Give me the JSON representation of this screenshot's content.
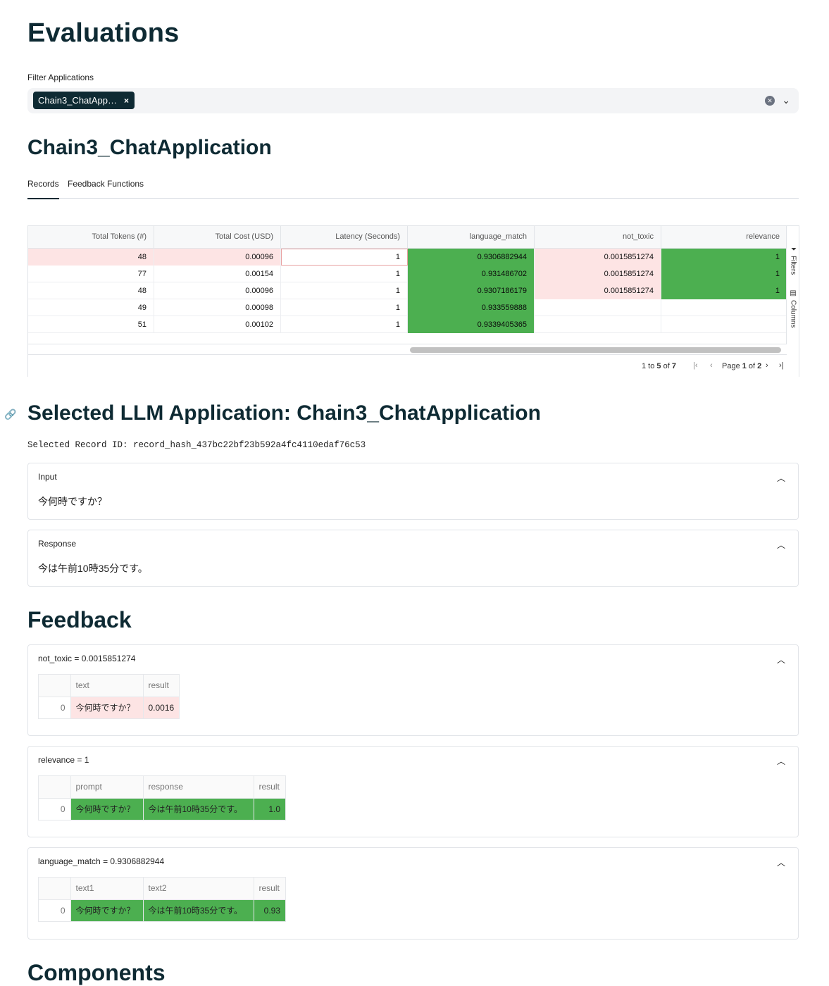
{
  "page_title": "Evaluations",
  "filter": {
    "label": "Filter Applications",
    "selected_chip": "Chain3_ChatApp…",
    "chip_remove": "×"
  },
  "app_title": "Chain3_ChatApplication",
  "tabs": [
    {
      "label": "Records",
      "active": true
    },
    {
      "label": "Feedback Functions",
      "active": false
    }
  ],
  "records_table": {
    "headers": [
      "Total Tokens (#)",
      "Total Cost (USD)",
      "Latency (Seconds)",
      "language_match",
      "not_toxic",
      "relevance"
    ],
    "rows": [
      [
        "48",
        "0.00096",
        "1",
        "0.9306882944",
        "0.0015851274",
        "1"
      ],
      [
        "77",
        "0.00154",
        "1",
        "0.931486702",
        "0.0015851274",
        "1"
      ],
      [
        "48",
        "0.00096",
        "1",
        "0.9307186179",
        "0.0015851274",
        "1"
      ],
      [
        "49",
        "0.00098",
        "1",
        "0.933559888",
        "",
        ""
      ],
      [
        "51",
        "0.00102",
        "1",
        "0.9339405365",
        "",
        ""
      ]
    ],
    "side_panel": {
      "filters": "Filters",
      "columns": "Columns"
    },
    "pager": {
      "range_from": "1",
      "range_to": "5",
      "range_total": "7",
      "page_current": "1",
      "page_total": "2"
    }
  },
  "selected": {
    "heading": "Selected LLM Application: Chain3_ChatApplication",
    "record_id": "Selected Record ID: record_hash_437bc22bf23b592a4fc4110edaf76c53"
  },
  "input": {
    "label": "Input",
    "text": "今何時ですか？"
  },
  "response": {
    "label": "Response",
    "text": "今は午前10時35分です。"
  },
  "feedback_heading": "Feedback",
  "feedback": {
    "not_toxic": {
      "label": "not_toxic = 0.0015851274",
      "columns": [
        "text",
        "result"
      ],
      "row": {
        "index": "0",
        "text": "今何時ですか？",
        "result": "0.0016"
      }
    },
    "relevance": {
      "label": "relevance = 1",
      "columns": [
        "prompt",
        "response",
        "result"
      ],
      "row": {
        "index": "0",
        "prompt": "今何時ですか？",
        "response": "今は午前10時35分です。",
        "result": "1.0"
      }
    },
    "language_match": {
      "label": "language_match = 0.9306882944",
      "columns": [
        "text1",
        "text2",
        "result"
      ],
      "row": {
        "index": "0",
        "text1": "今何時ですか？",
        "text2": "今は午前10時35分です。",
        "result": "0.93"
      }
    }
  },
  "components_heading": "Components",
  "colors": {
    "good": "#4caf50",
    "bad": "#fde4e4",
    "heading": "#0e2a33"
  },
  "icons": [
    "close-icon",
    "clear-icon",
    "chevron-down-icon",
    "filter-icon",
    "columns-icon",
    "first-page-icon",
    "prev-page-icon",
    "next-page-icon",
    "last-page-icon",
    "link-icon",
    "chevron-up-icon"
  ]
}
